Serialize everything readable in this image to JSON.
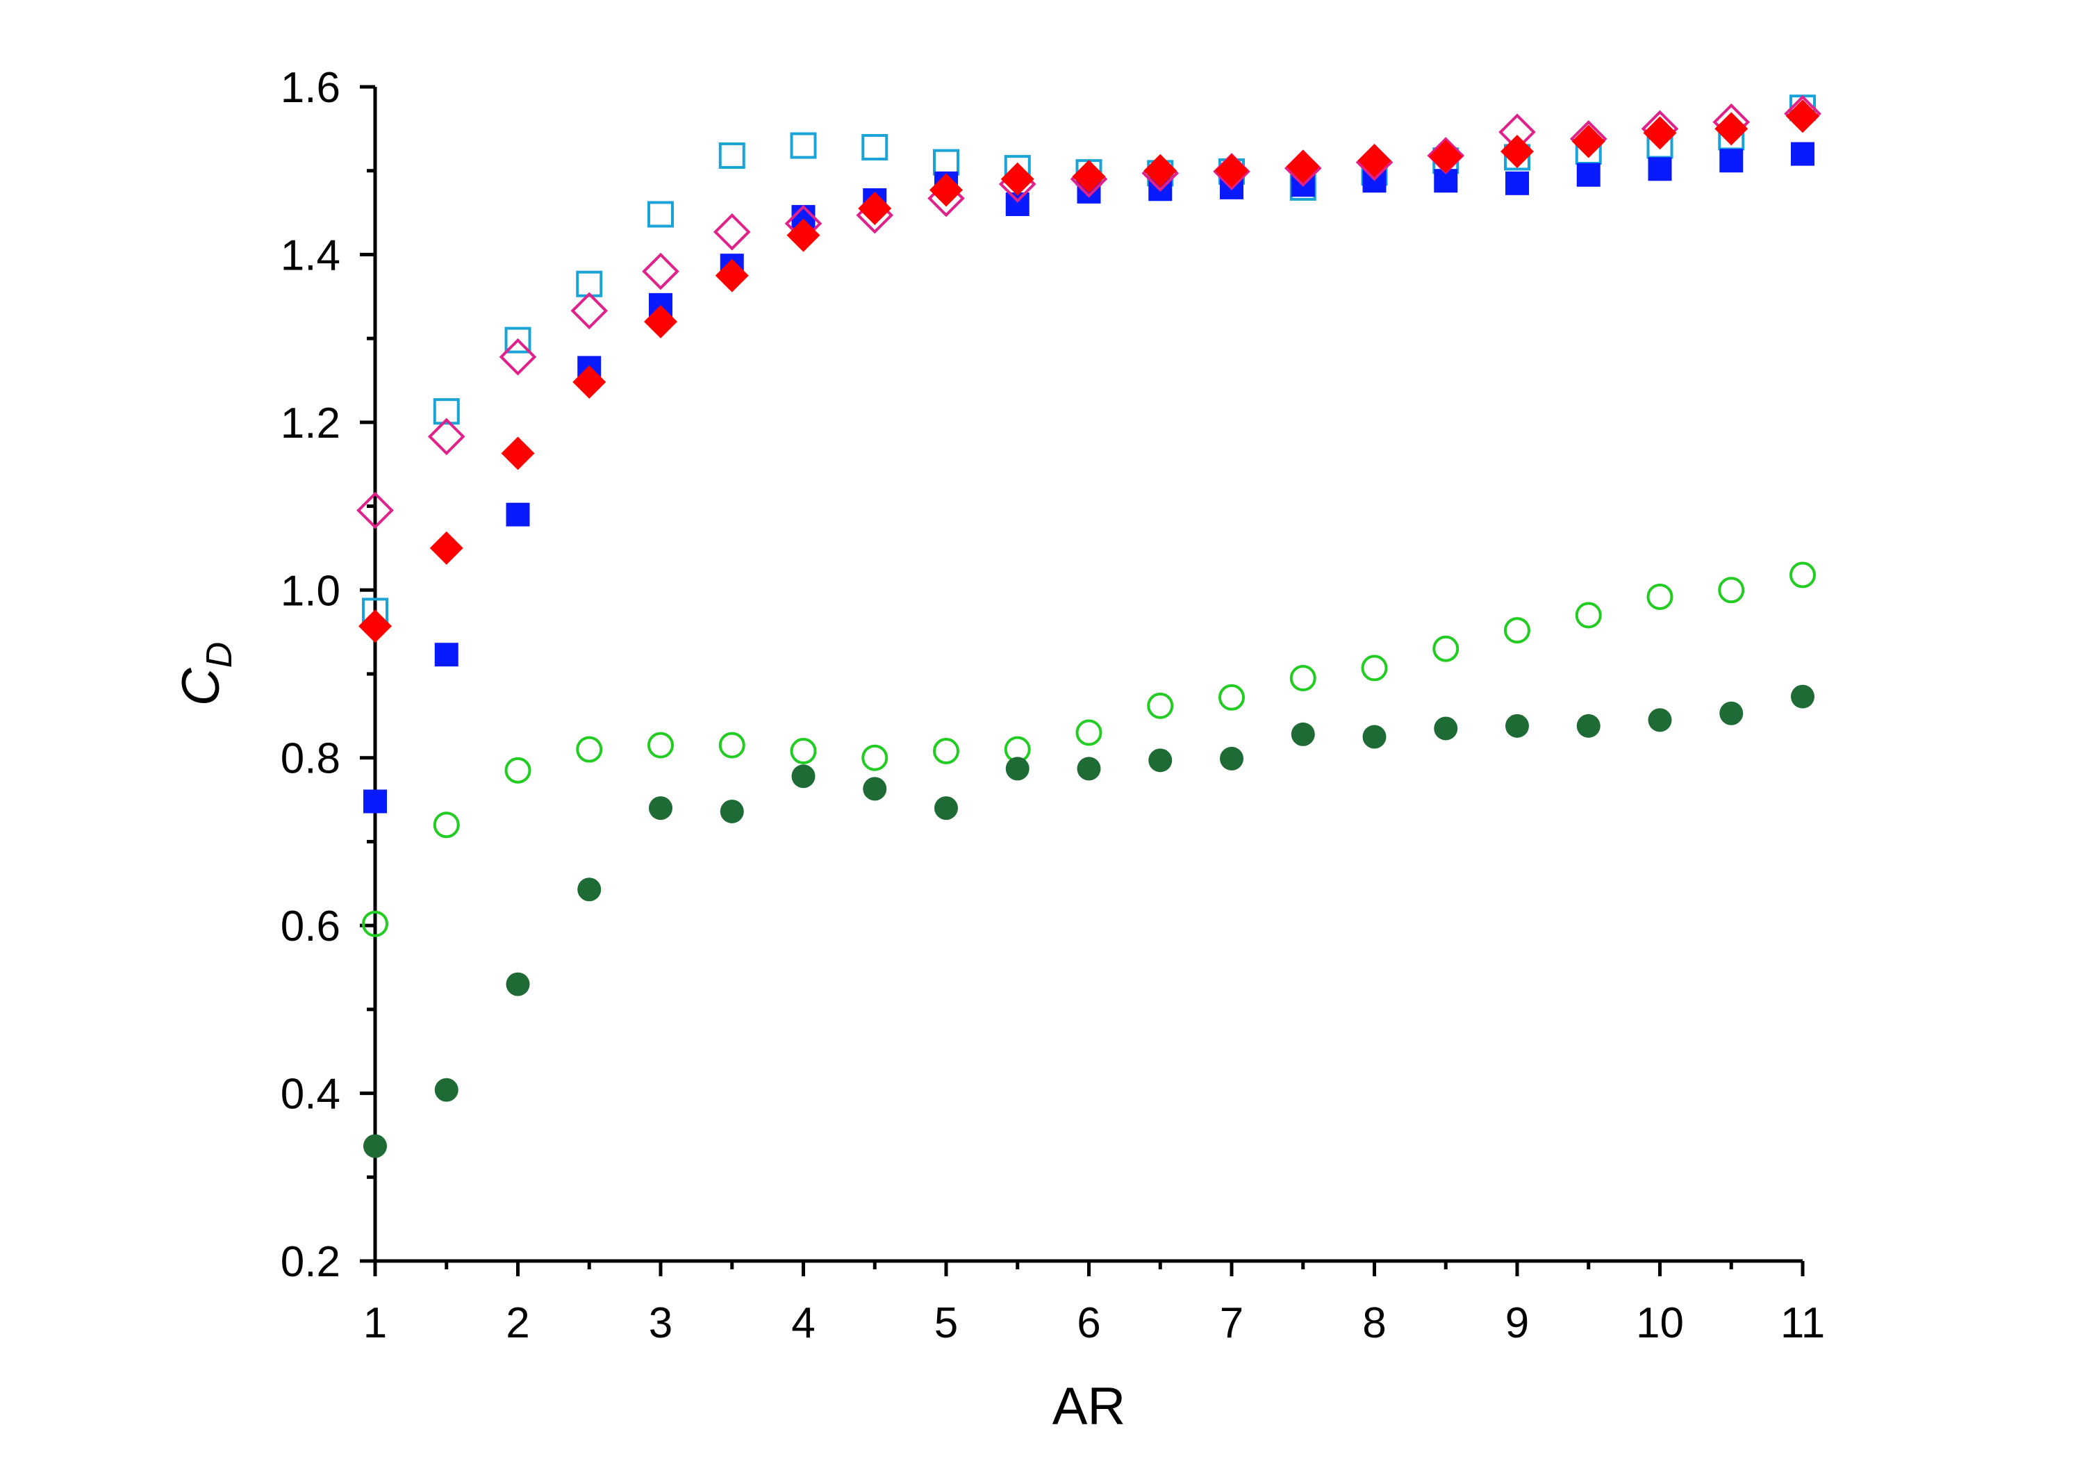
{
  "chart_data": {
    "type": "scatter",
    "title": "",
    "xlabel": "AR",
    "ylabel_main": "C",
    "ylabel_sub": "D",
    "xlim": [
      1,
      11
    ],
    "ylim": [
      0.2,
      1.6
    ],
    "xticks": [
      1,
      2,
      3,
      4,
      5,
      6,
      7,
      8,
      9,
      10,
      11
    ],
    "xtick_labels": [
      "1",
      "2",
      "3",
      "4",
      "5",
      "6",
      "7",
      "8",
      "9",
      "10",
      "11"
    ],
    "yticks": [
      0.2,
      0.4,
      0.6,
      0.8,
      1.0,
      1.2,
      1.4,
      1.6
    ],
    "ytick_labels": [
      "0.2",
      "0.4",
      "0.6",
      "0.8",
      "1.0",
      "1.2",
      "1.4",
      "1.6"
    ],
    "grid": false,
    "x": [
      1,
      1.5,
      2,
      2.5,
      3,
      3.5,
      4,
      4.5,
      5,
      5.5,
      6,
      6.5,
      7,
      7.5,
      8,
      8.5,
      9,
      9.5,
      10,
      10.5,
      11
    ],
    "series": [
      {
        "marker": "square-open",
        "color": "#1aa3d6",
        "values": [
          0.975,
          1.213,
          1.298,
          1.365,
          1.448,
          1.518,
          1.53,
          1.528,
          1.51,
          1.503,
          1.498,
          1.497,
          1.499,
          1.48,
          1.498,
          1.512,
          1.516,
          1.523,
          1.53,
          1.54,
          1.575
        ]
      },
      {
        "marker": "square-filled",
        "color": "#0a1aff",
        "values": [
          0.748,
          0.923,
          1.09,
          1.265,
          1.34,
          1.387,
          1.445,
          1.465,
          1.485,
          1.46,
          1.475,
          1.478,
          1.48,
          1.483,
          1.488,
          1.488,
          1.485,
          1.495,
          1.502,
          1.512,
          1.52
        ]
      },
      {
        "marker": "diamond-open",
        "color": "#e0218a",
        "values": [
          1.095,
          1.183,
          1.278,
          1.333,
          1.38,
          1.427,
          1.437,
          1.447,
          1.467,
          1.484,
          1.49,
          1.497,
          1.499,
          1.503,
          1.51,
          1.518,
          1.546,
          1.538,
          1.55,
          1.558,
          1.568
        ]
      },
      {
        "marker": "diamond-filled",
        "color": "#ff0000",
        "values": [
          0.957,
          1.05,
          1.163,
          1.248,
          1.32,
          1.375,
          1.423,
          1.455,
          1.477,
          1.49,
          1.493,
          1.5,
          1.5,
          1.505,
          1.512,
          1.517,
          1.523,
          1.535,
          1.545,
          1.55,
          1.565
        ]
      },
      {
        "marker": "circle-open",
        "color": "#22cc22",
        "values": [
          0.602,
          0.72,
          0.785,
          0.81,
          0.815,
          0.815,
          0.808,
          0.8,
          0.808,
          0.81,
          0.83,
          0.862,
          0.872,
          0.895,
          0.907,
          0.93,
          0.952,
          0.97,
          0.992,
          1.0,
          1.018
        ]
      },
      {
        "marker": "circle-filled",
        "color": "#1f6b35",
        "values": [
          0.337,
          0.404,
          0.53,
          0.643,
          0.74,
          0.736,
          0.778,
          0.763,
          0.74,
          0.787,
          0.787,
          0.797,
          0.799,
          0.828,
          0.825,
          0.835,
          0.838,
          0.838,
          0.845,
          0.853,
          0.873
        ]
      }
    ]
  }
}
